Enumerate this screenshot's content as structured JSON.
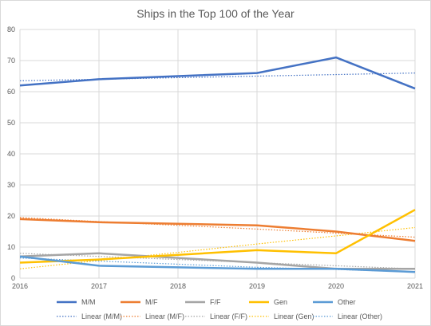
{
  "chart_data": {
    "type": "line",
    "title": "Ships in the Top 100 of the Year",
    "xlabel": "",
    "ylabel": "",
    "x": [
      2016,
      2017,
      2018,
      2019,
      2020,
      2021
    ],
    "x_tick_labels": [
      "2016",
      "2017",
      "2018",
      "2019",
      "2020",
      "2021"
    ],
    "ylim": [
      0,
      80
    ],
    "y_tick_labels": [
      "0",
      "10",
      "20",
      "30",
      "40",
      "50",
      "60",
      "70",
      "80"
    ],
    "grid": true,
    "legend_position": "bottom",
    "series": [
      {
        "name": "M/M",
        "color": "#4472c4",
        "values": [
          62,
          64,
          65,
          66,
          71,
          61
        ],
        "trend": [
          63.5,
          64.0,
          64.5,
          65.0,
          65.5,
          66.0
        ],
        "trend_name": "Linear (M/M)"
      },
      {
        "name": "M/F",
        "color": "#ed7d31",
        "values": [
          19,
          18,
          17.5,
          17,
          15,
          12
        ],
        "trend": [
          19.5,
          18.2,
          17.0,
          15.8,
          14.5,
          13.2
        ],
        "trend_name": "Linear (M/F)"
      },
      {
        "name": "F/F",
        "color": "#a5a5a5",
        "values": [
          7,
          8,
          6.5,
          5,
          3,
          3
        ],
        "trend": [
          8.0,
          7.0,
          6.0,
          5.0,
          4.0,
          3.0
        ],
        "trend_name": "Linear (F/F)"
      },
      {
        "name": "Gen",
        "color": "#ffc000",
        "values": [
          5,
          6,
          7.5,
          9,
          8,
          22
        ],
        "trend": [
          3.0,
          5.7,
          8.3,
          11.0,
          13.6,
          16.3
        ],
        "trend_name": "Linear (Gen)"
      },
      {
        "name": "Other",
        "color": "#5b9bd5",
        "values": [
          7,
          4,
          3.5,
          3,
          3,
          2
        ],
        "trend": [
          6.5,
          5.5,
          4.5,
          3.5,
          2.8,
          2.0
        ],
        "trend_name": "Linear (Other)"
      }
    ]
  }
}
